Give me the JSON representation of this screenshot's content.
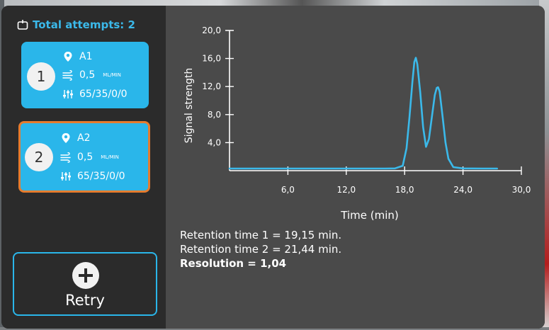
{
  "header": {
    "attempts_label": "Total attempts: 2"
  },
  "attempts": [
    {
      "number": "1",
      "location": "A1",
      "flow_value": "0,5",
      "flow_unit": "ML/MIN",
      "composition": "65/35/0/0",
      "selected": false
    },
    {
      "number": "2",
      "location": "A2",
      "flow_value": "0,5",
      "flow_unit": "ML/MIN",
      "composition": "65/35/0/0",
      "selected": true
    }
  ],
  "retry": {
    "label": "Retry"
  },
  "colors": {
    "accent": "#2ab6ea",
    "selected_border": "#e57c2f",
    "panel": "#4a4a4a",
    "sidebar": "#2b2b2b",
    "line": "#3bb9ea"
  },
  "chart_data": {
    "type": "line",
    "xlabel": "Time (min)",
    "ylabel": "Signal strength",
    "xlim": [
      0,
      30
    ],
    "ylim": [
      0,
      20
    ],
    "x_ticks": [
      6,
      12,
      18,
      24,
      30
    ],
    "x_tick_labels": [
      "6,0",
      "12,0",
      "18,0",
      "24,0",
      "30,0"
    ],
    "y_ticks": [
      4,
      8,
      12,
      16,
      20
    ],
    "y_tick_labels": [
      "4,0",
      "8,0",
      "12,0",
      "16,0",
      "20,0"
    ],
    "grid": false,
    "series": [
      {
        "x": [
          0,
          2,
          4,
          6,
          8,
          10,
          12,
          14,
          16,
          17,
          17.8,
          18.2,
          18.5,
          18.8,
          19.0,
          19.15,
          19.3,
          19.6,
          19.9,
          20.2,
          20.5,
          20.8,
          21.1,
          21.3,
          21.44,
          21.6,
          21.9,
          22.2,
          22.5,
          23,
          24,
          26,
          27.5
        ],
        "y": [
          0.1,
          0.1,
          0.1,
          0.1,
          0.1,
          0.1,
          0.1,
          0.1,
          0.1,
          0.12,
          0.5,
          3.0,
          7.5,
          12.5,
          15.3,
          15.9,
          15.0,
          11.0,
          6.0,
          3.2,
          4.3,
          7.5,
          10.6,
          11.6,
          11.7,
          11.1,
          7.5,
          3.8,
          1.5,
          0.3,
          0.12,
          0.1,
          0.1
        ]
      }
    ]
  },
  "results": {
    "rt1": "Retention time 1 = 19,15 min.",
    "rt2": "Retention time 2 = 21,44 min.",
    "resolution": "Resolution = 1,04"
  }
}
